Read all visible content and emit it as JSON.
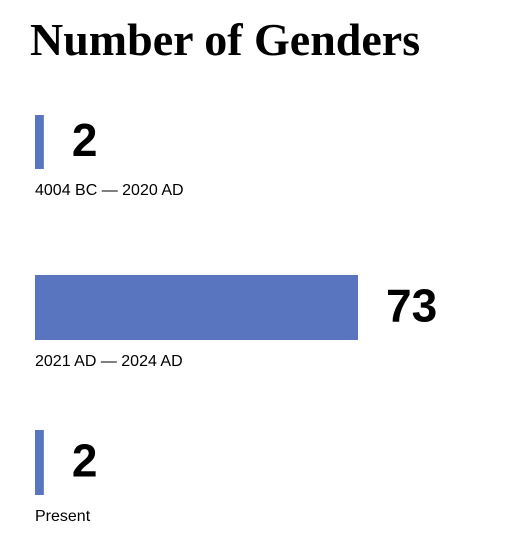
{
  "chart_data": {
    "type": "bar",
    "orientation": "horizontal",
    "title": "Number of Genders",
    "categories": [
      "4004 BC — 2020 AD",
      "2021 AD — 2024 AD",
      "Present"
    ],
    "values": [
      2,
      73,
      2
    ],
    "color": "#5a75bf"
  }
}
